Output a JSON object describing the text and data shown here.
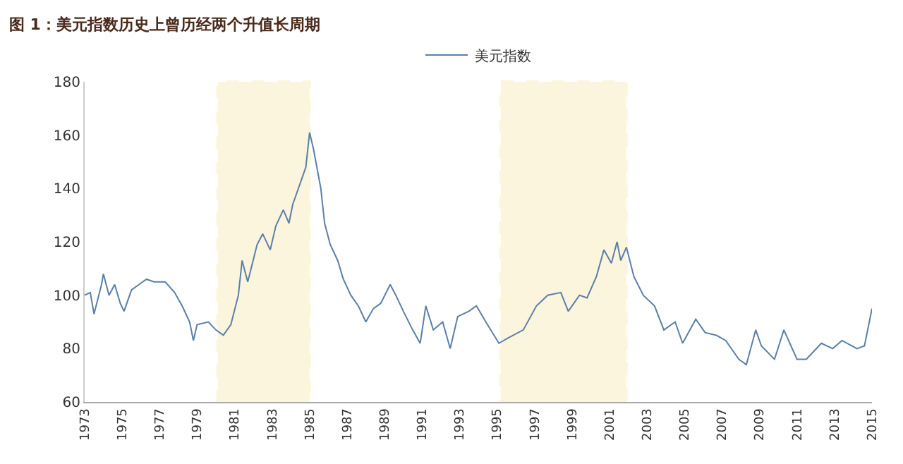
{
  "chart_data": {
    "type": "line",
    "title": "图 1：美元指数历史上曾历经两个升值长周期",
    "x": [
      1973.0,
      1973.3,
      1973.5,
      1973.9,
      1974.0,
      1974.3,
      1974.6,
      1974.9,
      1975.1,
      1975.5,
      1975.9,
      1976.3,
      1976.7,
      1977.3,
      1977.8,
      1978.2,
      1978.6,
      1978.8,
      1979.0,
      1979.6,
      1980.0,
      1980.4,
      1980.8,
      1981.2,
      1981.4,
      1981.7,
      1982.2,
      1982.5,
      1982.9,
      1983.2,
      1983.6,
      1983.9,
      1984.1,
      1984.5,
      1984.8,
      1985.0,
      1985.2,
      1985.6,
      1985.8,
      1986.1,
      1986.5,
      1986.8,
      1987.2,
      1987.6,
      1988.0,
      1988.4,
      1988.8,
      1989.3,
      1989.6,
      1990.0,
      1990.5,
      1990.9,
      1991.2,
      1991.6,
      1992.1,
      1992.5,
      1992.9,
      1993.5,
      1993.9,
      1994.4,
      1995.1,
      1995.6,
      1996.4,
      1997.1,
      1997.7,
      1998.4,
      1998.8,
      1999.4,
      1999.8,
      2000.3,
      2000.7,
      2001.1,
      2001.4,
      2001.6,
      2001.9,
      2002.3,
      2002.8,
      2003.4,
      2003.9,
      2004.5,
      2004.9,
      2005.6,
      2006.1,
      2006.7,
      2007.2,
      2007.9,
      2008.3,
      2008.8,
      2009.1,
      2009.8,
      2010.3,
      2011.0,
      2011.5,
      2012.3,
      2012.9,
      2013.4,
      2014.2,
      2014.6,
      2015.0
    ],
    "series": [
      {
        "name": "美元指数",
        "color": "#5a7fa8",
        "values": [
          100,
          101,
          93,
          104,
          108,
          100,
          104,
          97,
          94,
          102,
          104,
          106,
          105,
          105,
          101,
          96,
          90,
          83,
          89,
          90,
          87,
          85,
          89,
          100,
          113,
          105,
          119,
          123,
          117,
          126,
          132,
          127,
          134,
          142,
          148,
          161,
          155,
          140,
          127,
          119,
          113,
          106,
          100,
          96,
          90,
          95,
          97,
          104,
          100,
          94,
          87,
          82,
          96,
          87,
          90,
          80,
          92,
          94,
          96,
          90,
          82,
          84,
          87,
          96,
          100,
          101,
          94,
          100,
          99,
          107,
          117,
          112,
          120,
          113,
          118,
          107,
          100,
          96,
          87,
          90,
          82,
          91,
          86,
          85,
          83,
          76,
          74,
          87,
          81,
          76,
          87,
          76,
          76,
          82,
          80,
          83,
          80,
          81,
          95
        ]
      }
    ],
    "xlim": [
      1973,
      2015
    ],
    "xticks": [
      1973,
      1975,
      1977,
      1979,
      1981,
      1983,
      1985,
      1987,
      1989,
      1991,
      1993,
      1995,
      1997,
      1999,
      2001,
      2003,
      2005,
      2007,
      2009,
      2011,
      2013,
      2015
    ],
    "ylim": [
      60,
      180
    ],
    "yticks": [
      60,
      80,
      100,
      120,
      140,
      160,
      180
    ],
    "bands": [
      {
        "axis": "x",
        "from": 1980.1,
        "to": 1985.0,
        "color": "#f0c020"
      },
      {
        "axis": "x",
        "from": 1995.2,
        "to": 2001.9,
        "color": "#f0c020"
      }
    ],
    "grid": false,
    "legend": "top"
  }
}
